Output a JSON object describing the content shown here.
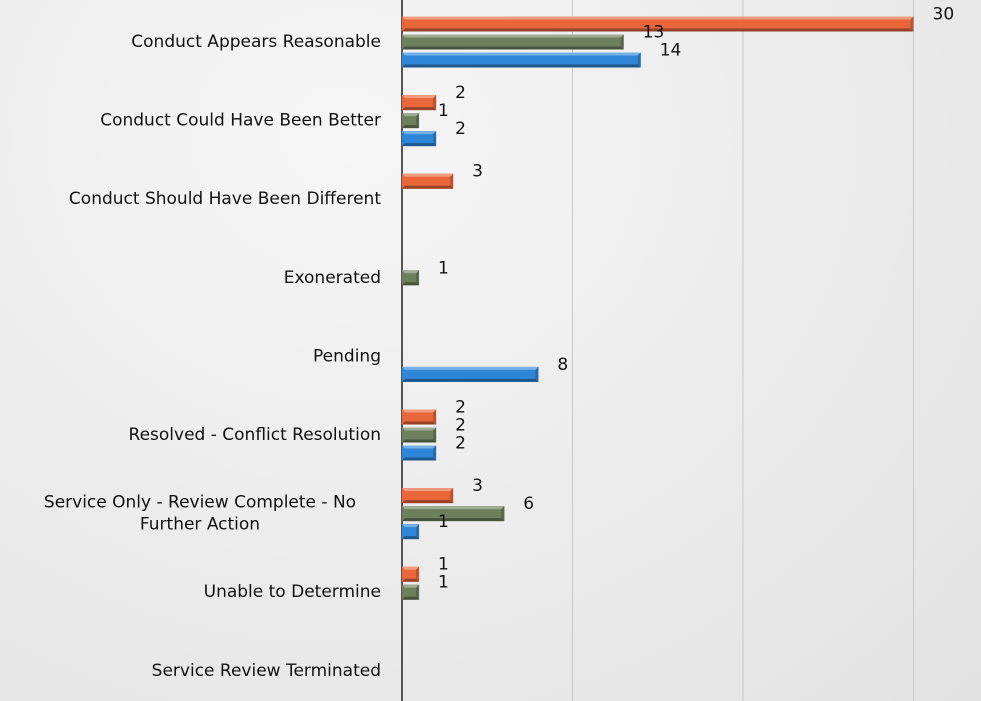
{
  "chart_data": {
    "type": "bar",
    "orientation": "horizontal",
    "categories": [
      [
        "Conduct Appears Reasonable"
      ],
      [
        "Conduct Could Have Been Better"
      ],
      [
        "Conduct Should Have Been Different"
      ],
      [
        "Exonerated"
      ],
      [
        "Pending"
      ],
      [
        "Resolved - Conflict Resolution"
      ],
      [
        "Service Only - Review Complete - No",
        "Further Action"
      ],
      [
        "Unable to Determine"
      ],
      [
        "Service Review Terminated"
      ]
    ],
    "series": [
      {
        "color": "#E8663A",
        "values": [
          30,
          2,
          3,
          null,
          null,
          2,
          3,
          1,
          null
        ]
      },
      {
        "color": "#6E7F5C",
        "values": [
          13,
          1,
          null,
          1,
          null,
          2,
          6,
          1,
          null
        ]
      },
      {
        "color": "#2E86D8",
        "values": [
          14,
          2,
          null,
          null,
          8,
          2,
          1,
          null,
          null
        ]
      }
    ],
    "xlim": [
      0,
      33
    ],
    "x_gridlines": [
      10,
      20,
      30
    ],
    "grid": true,
    "data_labels": true,
    "title": "",
    "xlabel": "",
    "ylabel": ""
  }
}
